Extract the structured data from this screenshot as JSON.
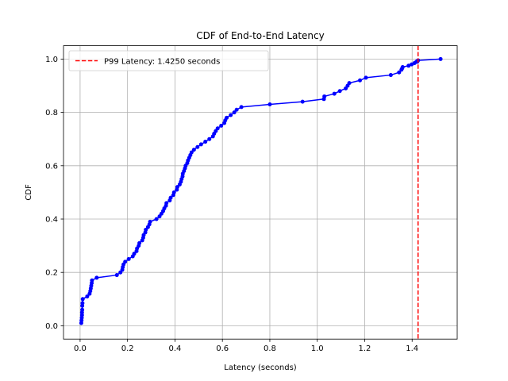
{
  "chart_data": {
    "type": "line",
    "title": "CDF of End-to-End Latency",
    "xlabel": "Latency (seconds)",
    "ylabel": "CDF",
    "xlim": [
      -0.07,
      1.59
    ],
    "ylim": [
      -0.05,
      1.05
    ],
    "xticks": [
      0.0,
      0.2,
      0.4,
      0.6,
      0.8,
      1.0,
      1.2,
      1.4
    ],
    "xtick_labels": [
      "0.0",
      "0.2",
      "0.4",
      "0.6",
      "0.8",
      "1.0",
      "1.2",
      "1.4"
    ],
    "yticks": [
      0.0,
      0.2,
      0.4,
      0.6,
      0.8,
      1.0
    ],
    "ytick_labels": [
      "0.0",
      "0.2",
      "0.4",
      "0.6",
      "0.8",
      "1.0"
    ],
    "grid": true,
    "legend_placement": "upper-left",
    "series": [
      {
        "color": "#0000ff",
        "marker": "dot",
        "x": [
          0.005,
          0.006,
          0.007,
          0.008,
          0.008,
          0.009,
          0.009,
          0.01,
          0.011,
          0.03,
          0.04,
          0.043,
          0.045,
          0.047,
          0.049,
          0.05,
          0.07,
          0.155,
          0.17,
          0.178,
          0.18,
          0.183,
          0.19,
          0.205,
          0.222,
          0.228,
          0.238,
          0.24,
          0.247,
          0.25,
          0.262,
          0.266,
          0.268,
          0.275,
          0.277,
          0.286,
          0.292,
          0.295,
          0.322,
          0.335,
          0.343,
          0.35,
          0.355,
          0.362,
          0.364,
          0.378,
          0.382,
          0.393,
          0.396,
          0.408,
          0.41,
          0.42,
          0.425,
          0.428,
          0.432,
          0.433,
          0.438,
          0.442,
          0.445,
          0.452,
          0.455,
          0.46,
          0.465,
          0.47,
          0.48,
          0.495,
          0.51,
          0.528,
          0.545,
          0.56,
          0.565,
          0.572,
          0.58,
          0.595,
          0.608,
          0.612,
          0.618,
          0.635,
          0.65,
          0.66,
          0.68,
          0.8,
          0.938,
          1.028,
          1.03,
          1.072,
          1.095,
          1.12,
          1.128,
          1.135,
          1.18,
          1.205,
          1.31,
          1.345,
          1.355,
          1.358,
          1.36,
          1.385,
          1.398,
          1.41,
          1.418,
          1.422,
          1.425,
          1.52
        ],
        "y": [
          0.01,
          0.02,
          0.03,
          0.04,
          0.05,
          0.06,
          0.075,
          0.085,
          0.1,
          0.11,
          0.12,
          0.13,
          0.14,
          0.15,
          0.16,
          0.17,
          0.18,
          0.19,
          0.2,
          0.21,
          0.22,
          0.23,
          0.24,
          0.25,
          0.26,
          0.27,
          0.28,
          0.29,
          0.3,
          0.31,
          0.32,
          0.33,
          0.34,
          0.35,
          0.36,
          0.37,
          0.38,
          0.39,
          0.4,
          0.41,
          0.42,
          0.43,
          0.44,
          0.45,
          0.46,
          0.47,
          0.48,
          0.49,
          0.5,
          0.51,
          0.52,
          0.53,
          0.54,
          0.55,
          0.56,
          0.57,
          0.58,
          0.59,
          0.6,
          0.61,
          0.62,
          0.63,
          0.64,
          0.65,
          0.66,
          0.67,
          0.68,
          0.69,
          0.7,
          0.71,
          0.72,
          0.73,
          0.74,
          0.75,
          0.76,
          0.77,
          0.78,
          0.79,
          0.8,
          0.81,
          0.82,
          0.83,
          0.84,
          0.85,
          0.86,
          0.87,
          0.88,
          0.89,
          0.9,
          0.91,
          0.92,
          0.93,
          0.94,
          0.95,
          0.96,
          0.965,
          0.97,
          0.975,
          0.98,
          0.985,
          0.99,
          0.99,
          0.995,
          1.0
        ]
      }
    ],
    "reference_lines": [
      {
        "orientation": "vertical",
        "x": 1.425,
        "color": "#ff0000",
        "style": "dashed",
        "legend": "P99 Latency: 1.4250 seconds"
      }
    ]
  }
}
